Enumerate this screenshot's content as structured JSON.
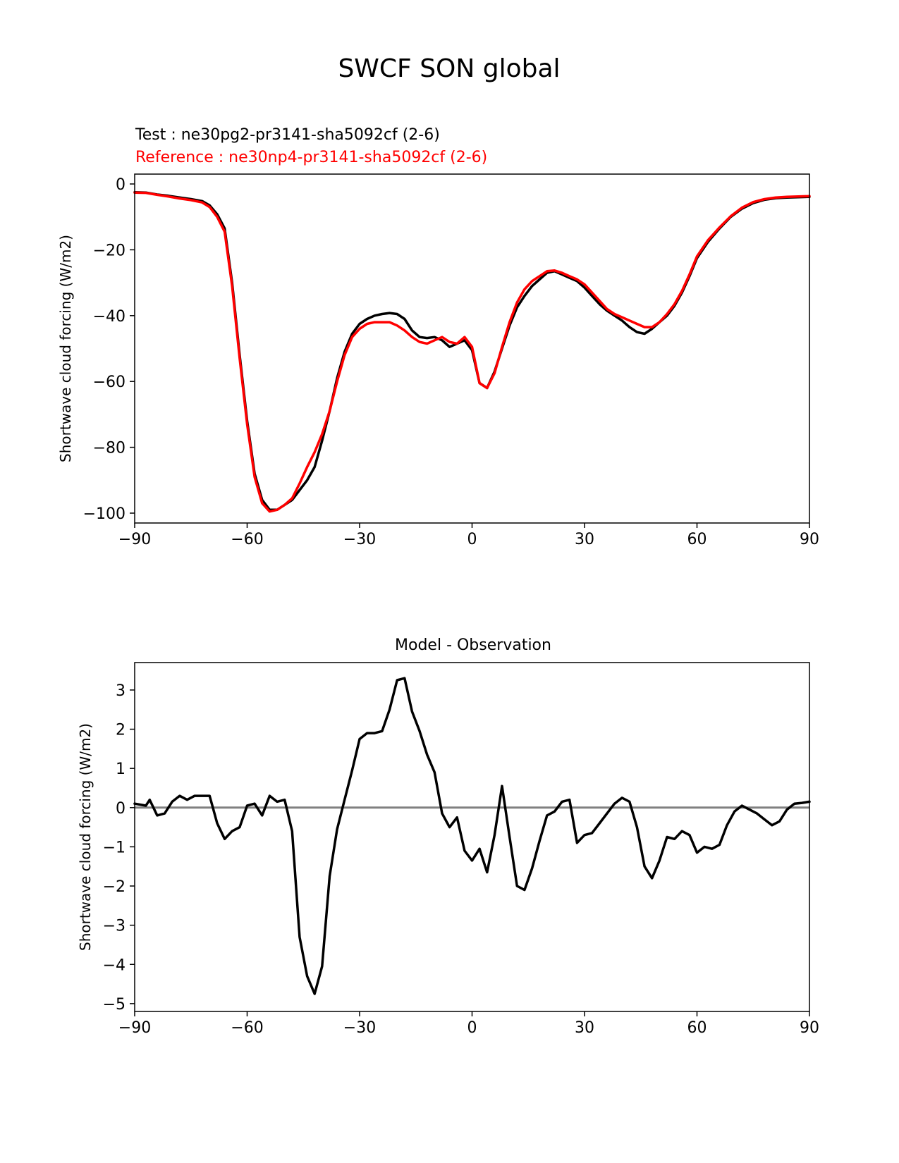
{
  "figure_title": "SWCF SON global",
  "colors": {
    "test": "#000000",
    "reference": "#ff0000",
    "zero_line": "#808080",
    "axis": "#000000"
  },
  "chart_data": [
    {
      "type": "line",
      "test_label": "Test : ne30pg2-pr3141-sha5092cf (2-6)",
      "reference_label": "Reference : ne30np4-pr3141-sha5092cf (2-6)",
      "xlabel": "",
      "ylabel": "Shortwave cloud forcing (W/m2)",
      "xlim": [
        -90,
        90
      ],
      "ylim": [
        -103,
        3
      ],
      "xticks": [
        -90,
        -60,
        -30,
        0,
        30,
        60,
        90
      ],
      "xtick_labels": [
        "−90",
        "−60",
        "−30",
        "0",
        "30",
        "60",
        "90"
      ],
      "yticks": [
        0,
        -20,
        -40,
        -60,
        -80,
        -100
      ],
      "ytick_labels": [
        "0",
        "−20",
        "−40",
        "−60",
        "−80",
        "−100"
      ],
      "series": [
        {
          "name": "Test",
          "color": "#000000",
          "x": [
            -90,
            -87,
            -84,
            -81,
            -78,
            -75,
            -72,
            -70,
            -68,
            -66,
            -64,
            -62,
            -60,
            -58,
            -56,
            -54,
            -52,
            -50,
            -48,
            -46,
            -44,
            -42,
            -40,
            -38,
            -36,
            -34,
            -32,
            -30,
            -28,
            -26,
            -24,
            -22,
            -20,
            -18,
            -16,
            -14,
            -12,
            -10,
            -8,
            -6,
            -4,
            -2,
            0,
            2,
            4,
            6,
            8,
            10,
            12,
            14,
            16,
            18,
            20,
            22,
            24,
            26,
            28,
            30,
            32,
            34,
            36,
            38,
            40,
            42,
            44,
            46,
            48,
            50,
            52,
            54,
            56,
            58,
            60,
            63,
            66,
            69,
            72,
            75,
            78,
            81,
            84,
            87,
            90
          ],
          "values": [
            -2.5,
            -2.6,
            -3.2,
            -3.6,
            -4.1,
            -4.6,
            -5.2,
            -6.5,
            -9.2,
            -13.5,
            -30,
            -52,
            -72,
            -88,
            -96,
            -99,
            -99,
            -97.5,
            -96,
            -93,
            -90,
            -86,
            -78,
            -69,
            -59,
            -51,
            -45.5,
            -42.5,
            -41,
            -40,
            -39.5,
            -39.2,
            -39.5,
            -41,
            -44.5,
            -46.5,
            -46.8,
            -46.5,
            -47.5,
            -49.5,
            -48.5,
            -47.5,
            -50.5,
            -60.5,
            -62,
            -57,
            -50,
            -43,
            -37.5,
            -34,
            -31,
            -29,
            -27,
            -26.5,
            -27.5,
            -28.5,
            -29.5,
            -31.5,
            -34,
            -36.5,
            -38.5,
            -40,
            -41.5,
            -43.5,
            -45,
            -45.5,
            -44,
            -42,
            -40,
            -37,
            -33,
            -28,
            -22.5,
            -17.5,
            -13.5,
            -10,
            -7.5,
            -5.8,
            -4.8,
            -4.3,
            -4.1,
            -4.0,
            -3.9
          ]
        },
        {
          "name": "Reference",
          "color": "#ff0000",
          "x": [
            -90,
            -87,
            -84,
            -81,
            -78,
            -75,
            -72,
            -70,
            -68,
            -66,
            -64,
            -62,
            -60,
            -58,
            -56,
            -54,
            -52,
            -50,
            -48,
            -46,
            -44,
            -42,
            -40,
            -38,
            -36,
            -34,
            -32,
            -30,
            -28,
            -26,
            -24,
            -22,
            -20,
            -18,
            -16,
            -14,
            -12,
            -10,
            -8,
            -6,
            -4,
            -2,
            0,
            2,
            4,
            6,
            8,
            10,
            12,
            14,
            16,
            18,
            20,
            22,
            24,
            26,
            28,
            30,
            32,
            34,
            36,
            38,
            40,
            42,
            44,
            46,
            48,
            50,
            52,
            54,
            56,
            58,
            60,
            63,
            66,
            69,
            72,
            75,
            78,
            81,
            84,
            87,
            90
          ],
          "values": [
            -2.6,
            -2.7,
            -3.3,
            -3.8,
            -4.4,
            -4.9,
            -5.6,
            -7,
            -10,
            -14.5,
            -31,
            -53,
            -73,
            -89,
            -97,
            -99.5,
            -99,
            -97.5,
            -95.5,
            -91,
            -86,
            -81.5,
            -76,
            -69,
            -60,
            -52,
            -46.5,
            -44,
            -42.5,
            -42,
            -42,
            -42,
            -43,
            -44.5,
            -46.5,
            -48,
            -48.5,
            -47.5,
            -46.5,
            -48,
            -48.5,
            -46.5,
            -49.5,
            -60.5,
            -62,
            -57.5,
            -49.5,
            -42,
            -36,
            -32,
            -29.5,
            -28,
            -26.5,
            -26.3,
            -27,
            -28,
            -29,
            -30.5,
            -33,
            -35.5,
            -38,
            -39.5,
            -40.5,
            -41.5,
            -42.5,
            -43.5,
            -43.5,
            -42,
            -39.5,
            -36.5,
            -32.5,
            -27.5,
            -22,
            -17,
            -13.2,
            -9.8,
            -7.2,
            -5.5,
            -4.6,
            -4.1,
            -3.9,
            -3.8,
            -3.7
          ]
        }
      ]
    },
    {
      "type": "line",
      "title": "Model - Observation",
      "xlabel": "",
      "ylabel": "Shortwave cloud forcing (W/m2)",
      "xlim": [
        -90,
        90
      ],
      "ylim": [
        -5.2,
        3.7
      ],
      "xticks": [
        -90,
        -60,
        -30,
        0,
        30,
        60,
        90
      ],
      "xtick_labels": [
        "−90",
        "−60",
        "−30",
        "0",
        "30",
        "60",
        "90"
      ],
      "yticks": [
        3,
        2,
        1,
        0,
        -1,
        -2,
        -3,
        -4,
        -5
      ],
      "ytick_labels": [
        "3",
        "2",
        "1",
        "0",
        "−1",
        "−2",
        "−3",
        "−4",
        "−5"
      ],
      "reference_line": 0,
      "series": [
        {
          "name": "Model - Observation",
          "color": "#000000",
          "x": [
            -90,
            -87,
            -86,
            -84,
            -82,
            -80,
            -78,
            -76,
            -74,
            -72,
            -70,
            -68,
            -66,
            -64,
            -62,
            -60,
            -58,
            -56,
            -54,
            -52,
            -50,
            -48,
            -46,
            -44,
            -42,
            -40,
            -38,
            -36,
            -34,
            -32,
            -30,
            -28,
            -26,
            -24,
            -22,
            -20,
            -18,
            -16,
            -14,
            -12,
            -10,
            -8,
            -6,
            -4,
            -2,
            0,
            2,
            4,
            6,
            8,
            10,
            12,
            14,
            16,
            18,
            20,
            22,
            24,
            26,
            28,
            30,
            32,
            34,
            36,
            38,
            40,
            42,
            44,
            46,
            48,
            50,
            52,
            54,
            56,
            58,
            60,
            62,
            64,
            66,
            68,
            70,
            72,
            74,
            76,
            78,
            80,
            82,
            84,
            86,
            88,
            90
          ],
          "values": [
            0.1,
            0.05,
            0.2,
            -0.2,
            -0.15,
            0.15,
            0.3,
            0.2,
            0.3,
            0.3,
            0.3,
            -0.4,
            -0.8,
            -0.6,
            -0.5,
            0.05,
            0.1,
            -0.2,
            0.3,
            0.15,
            0.2,
            -0.6,
            -3.3,
            -4.3,
            -4.75,
            -4.05,
            -1.75,
            -0.55,
            0.2,
            0.95,
            1.75,
            1.9,
            1.9,
            1.95,
            2.5,
            3.25,
            3.3,
            2.45,
            1.95,
            1.35,
            0.9,
            -0.15,
            -0.5,
            -0.25,
            -1.1,
            -1.35,
            -1.05,
            -1.65,
            -0.7,
            0.55,
            -0.75,
            -2.0,
            -2.1,
            -1.55,
            -0.85,
            -0.2,
            -0.1,
            0.15,
            0.2,
            -0.9,
            -0.7,
            -0.65,
            -0.4,
            -0.15,
            0.1,
            0.25,
            0.15,
            -0.5,
            -1.5,
            -1.8,
            -1.35,
            -0.75,
            -0.8,
            -0.6,
            -0.7,
            -1.15,
            -1.0,
            -1.05,
            -0.95,
            -0.45,
            -0.1,
            0.05,
            -0.05,
            -0.15,
            -0.3,
            -0.45,
            -0.35,
            -0.05,
            0.1,
            0.12,
            0.15
          ]
        }
      ]
    }
  ]
}
